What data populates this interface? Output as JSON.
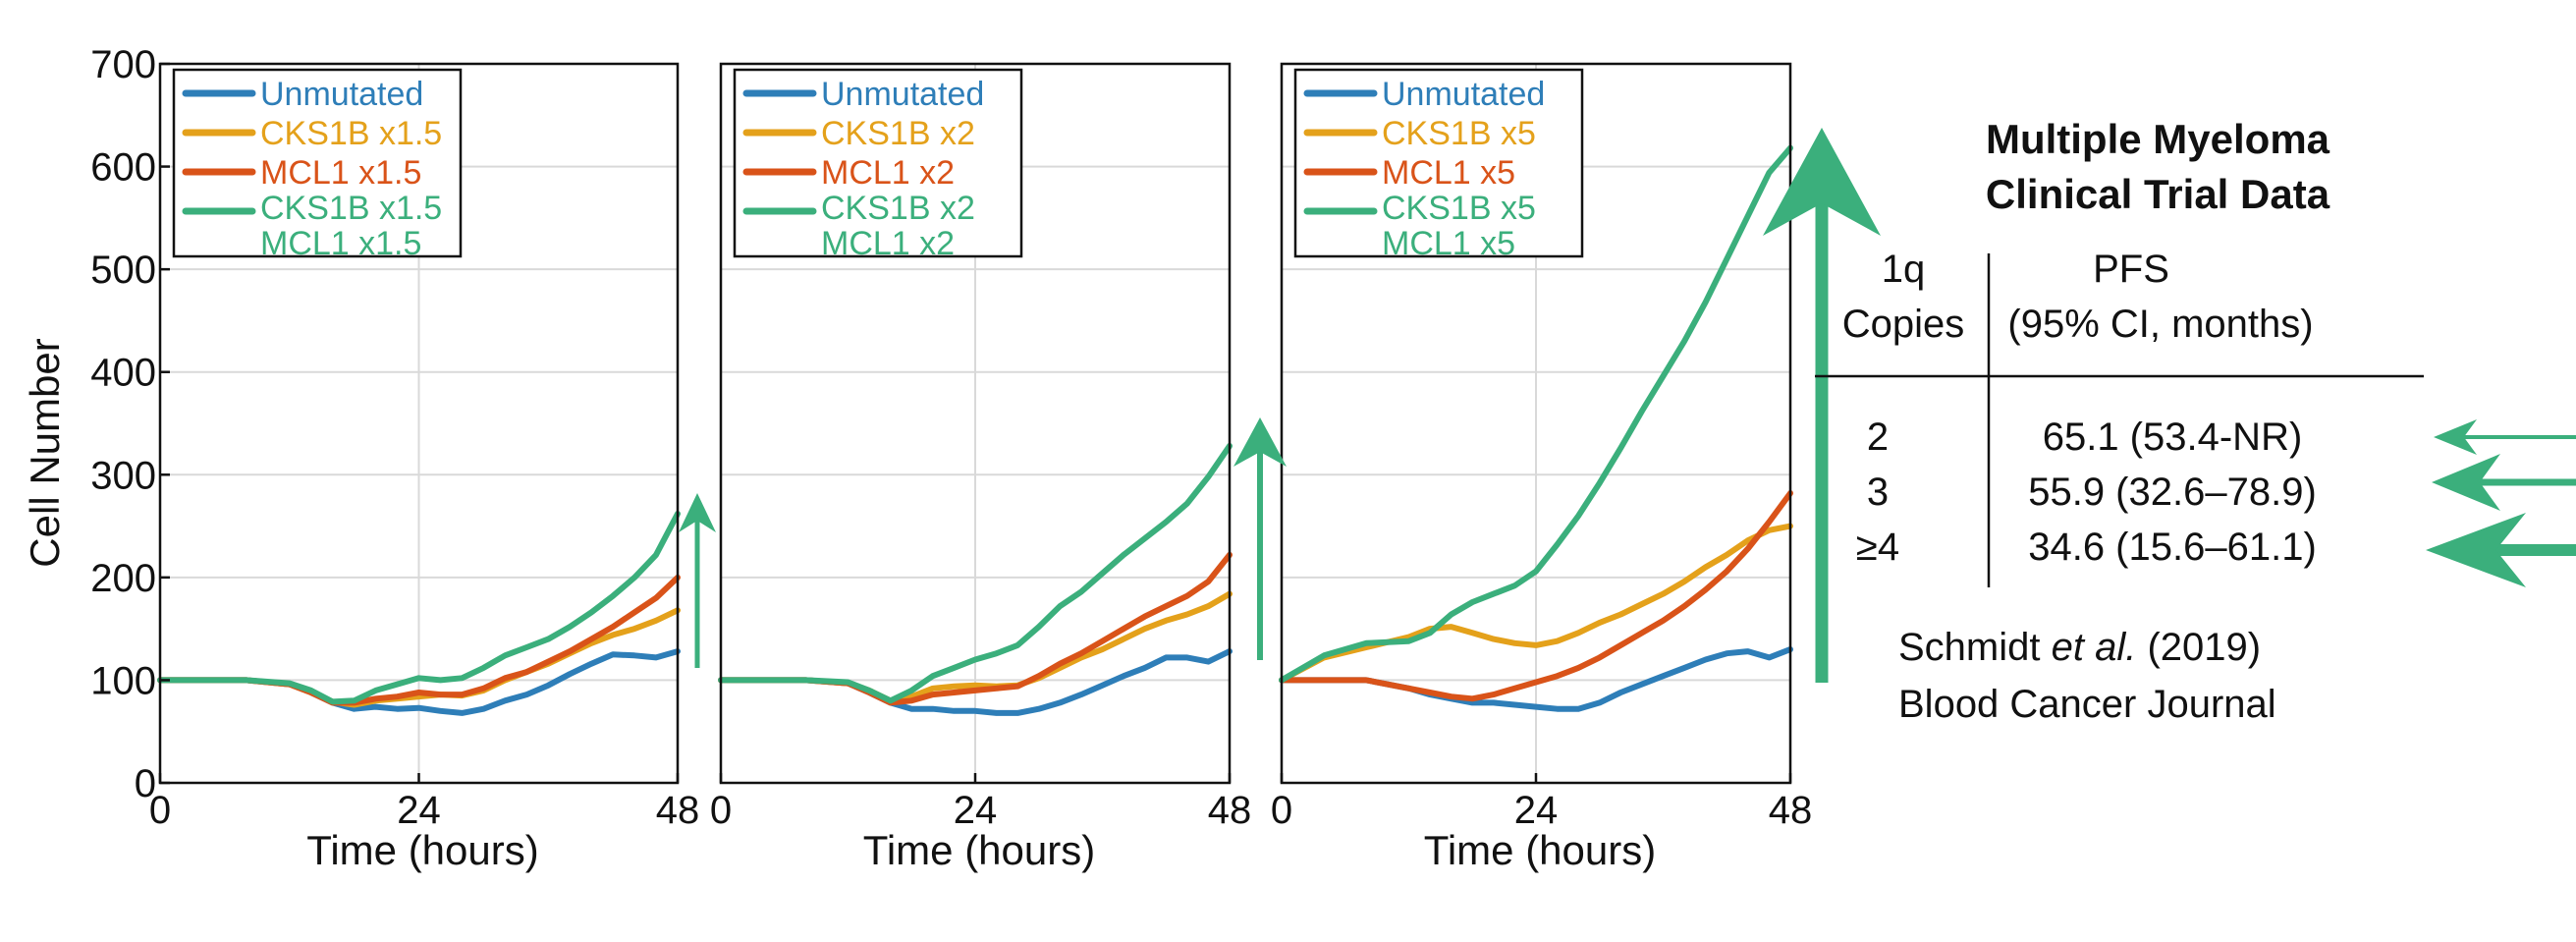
{
  "colors": {
    "unmutated": "#2E7EB8",
    "cks1b": "#E4A11B",
    "mcl1": "#D95319",
    "both": "#3BAF7C",
    "arrow": "#3BAF7C"
  },
  "chart_data": [
    {
      "type": "line",
      "xlabel": "Time (hours)",
      "ylabel": "Cell Number",
      "xlim": [
        0,
        48
      ],
      "ylim": [
        0,
        700
      ],
      "xticks": [
        "0",
        "24",
        "48"
      ],
      "yticks": [
        "0",
        "100",
        "200",
        "300",
        "400",
        "500",
        "600",
        "700"
      ],
      "grid": true,
      "legend_position": "top-left",
      "x": [
        0,
        4,
        8,
        12,
        14,
        16,
        18,
        20,
        22,
        24,
        26,
        28,
        30,
        32,
        34,
        36,
        38,
        40,
        42,
        44,
        46,
        48
      ],
      "series": [
        {
          "name": "Unmutated",
          "values": [
            100,
            100,
            100,
            96,
            88,
            78,
            72,
            74,
            72,
            73,
            70,
            68,
            72,
            80,
            86,
            95,
            106,
            116,
            125,
            124,
            122,
            128
          ]
        },
        {
          "name": "CKS1B x1.5",
          "values": [
            100,
            100,
            100,
            96,
            88,
            79,
            76,
            80,
            82,
            84,
            86,
            85,
            90,
            100,
            108,
            116,
            126,
            136,
            144,
            150,
            158,
            168
          ]
        },
        {
          "name": "MCL1 x1.5",
          "values": [
            100,
            100,
            100,
            96,
            88,
            78,
            78,
            82,
            84,
            88,
            86,
            86,
            92,
            102,
            108,
            118,
            128,
            140,
            152,
            166,
            180,
            200
          ]
        },
        {
          "name": "CKS1B x1.5 MCL1 x1.5",
          "values": [
            100,
            100,
            100,
            97,
            90,
            79,
            80,
            90,
            96,
            102,
            100,
            102,
            112,
            124,
            132,
            140,
            152,
            166,
            182,
            200,
            222,
            262
          ]
        }
      ]
    },
    {
      "type": "line",
      "xlabel": "Time (hours)",
      "xlim": [
        0,
        48
      ],
      "ylim": [
        0,
        700
      ],
      "xticks": [
        "0",
        "24",
        "48"
      ],
      "grid": true,
      "legend_position": "top-left",
      "x": [
        0,
        4,
        8,
        12,
        14,
        16,
        18,
        20,
        22,
        24,
        26,
        28,
        30,
        32,
        34,
        36,
        38,
        40,
        42,
        44,
        46,
        48
      ],
      "series": [
        {
          "name": "Unmutated",
          "values": [
            100,
            100,
            100,
            97,
            88,
            78,
            72,
            72,
            70,
            70,
            68,
            68,
            72,
            78,
            86,
            95,
            104,
            112,
            122,
            122,
            118,
            128
          ]
        },
        {
          "name": "CKS1B x2",
          "values": [
            100,
            100,
            100,
            97,
            90,
            80,
            84,
            92,
            94,
            95,
            94,
            95,
            102,
            112,
            122,
            130,
            140,
            150,
            158,
            164,
            172,
            184
          ]
        },
        {
          "name": "MCL1 x2",
          "values": [
            100,
            100,
            100,
            97,
            88,
            78,
            80,
            86,
            88,
            90,
            92,
            94,
            104,
            116,
            126,
            138,
            150,
            162,
            172,
            182,
            196,
            222
          ]
        },
        {
          "name": "CKS1B x2 MCL1 x2",
          "values": [
            100,
            100,
            100,
            98,
            90,
            80,
            90,
            104,
            112,
            120,
            126,
            134,
            152,
            172,
            186,
            204,
            222,
            238,
            254,
            272,
            298,
            328
          ]
        }
      ]
    },
    {
      "type": "line",
      "xlabel": "Time (hours)",
      "xlim": [
        0,
        48
      ],
      "ylim": [
        0,
        700
      ],
      "xticks": [
        "0",
        "24",
        "48"
      ],
      "grid": true,
      "legend_position": "top-left",
      "x": [
        0,
        4,
        8,
        12,
        14,
        16,
        18,
        20,
        22,
        24,
        26,
        28,
        30,
        32,
        34,
        36,
        38,
        40,
        42,
        44,
        46,
        48
      ],
      "series": [
        {
          "name": "Unmutated",
          "values": [
            100,
            100,
            100,
            92,
            86,
            82,
            78,
            78,
            76,
            74,
            72,
            72,
            78,
            88,
            96,
            104,
            112,
            120,
            126,
            128,
            122,
            130
          ]
        },
        {
          "name": "CKS1B x5",
          "values": [
            100,
            122,
            132,
            142,
            150,
            152,
            146,
            140,
            136,
            134,
            138,
            146,
            156,
            164,
            174,
            184,
            196,
            210,
            222,
            236,
            246,
            250
          ]
        },
        {
          "name": "MCL1 x5",
          "values": [
            100,
            100,
            100,
            92,
            88,
            84,
            82,
            86,
            92,
            98,
            104,
            112,
            122,
            134,
            146,
            158,
            172,
            188,
            206,
            228,
            254,
            282
          ]
        },
        {
          "name": "CKS1B x5 MCL1 x5",
          "values": [
            100,
            124,
            136,
            138,
            146,
            164,
            176,
            184,
            192,
            206,
            232,
            260,
            292,
            326,
            362,
            396,
            430,
            468,
            510,
            552,
            594,
            618
          ]
        }
      ]
    }
  ],
  "trial": {
    "title_line1": "Multiple Myeloma",
    "title_line2": "Clinical Trial Data",
    "col1_header_line1": "1q",
    "col1_header_line2": "Copies",
    "col2_header_line1": "PFS",
    "col2_header_line2": "(95% CI, months)",
    "rows": [
      {
        "copies": "2",
        "pfs": "65.1 (53.4-NR)"
      },
      {
        "copies": "3",
        "pfs": "55.9 (32.6–78.9)"
      },
      {
        "copies": "≥4",
        "pfs": "34.6 (15.6–61.1)"
      }
    ],
    "citation_author": "Schmidt",
    "citation_etal": "et al.",
    "citation_year": "(2019)",
    "citation_journal": "Blood Cancer Journal"
  }
}
